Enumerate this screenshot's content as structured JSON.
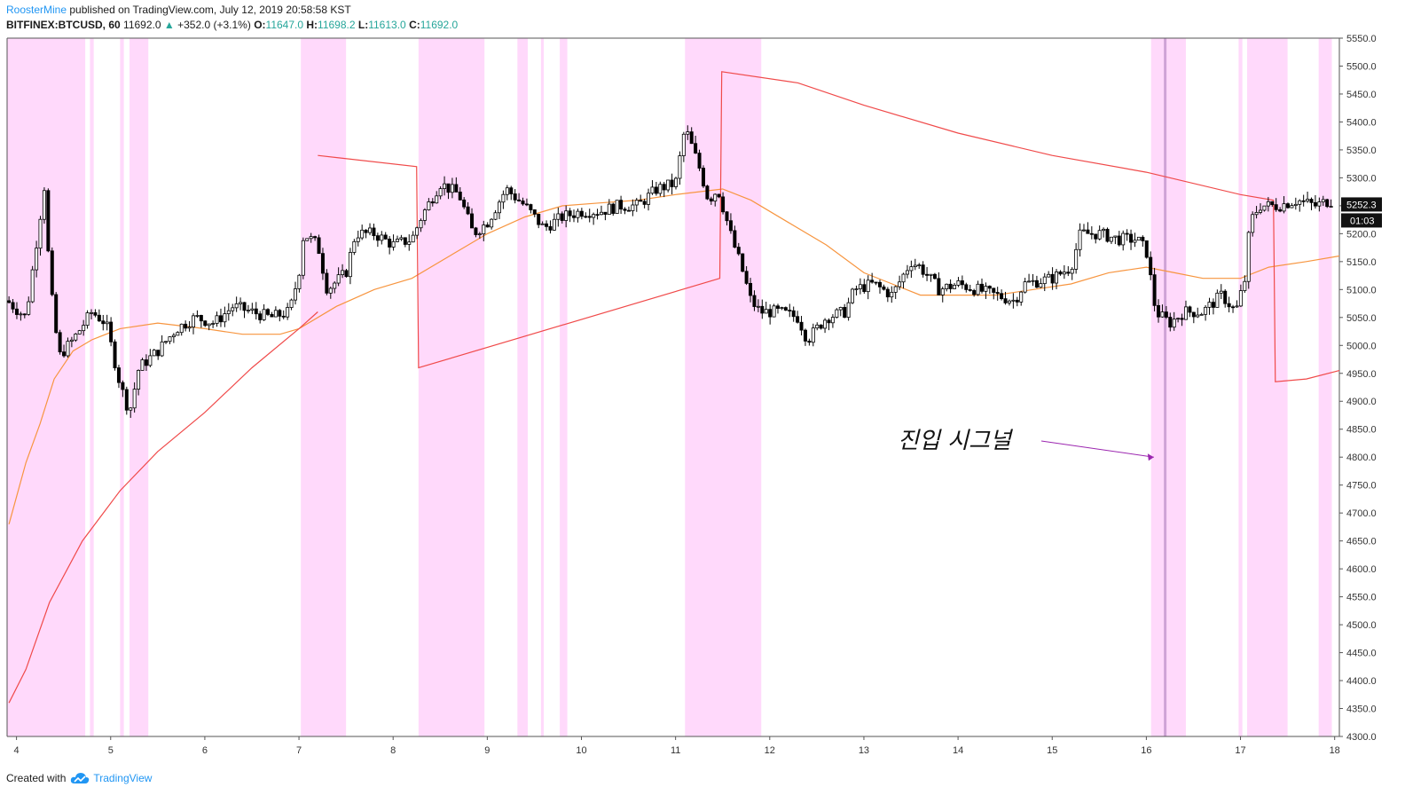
{
  "header": {
    "publisher": "RoosterMine",
    "published_text": "published on TradingView.com, July 12, 2019 20:58:58 KST",
    "symbol": "BITFINEX:BTCUSD, 60",
    "last": "11692.0",
    "change": "+352.0 (+3.1%)",
    "open_label": "O:",
    "open": "11647.0",
    "high_label": "H:",
    "high": "11698.2",
    "low_label": "L:",
    "low": "11613.0",
    "close_label": "C:",
    "close": "11692.0"
  },
  "footer": {
    "created_with": "Created with",
    "brand": "TradingView"
  },
  "colors": {
    "candle": "#000000",
    "highlight": "#ffd9fb",
    "signal_line": "#cfa3d6",
    "sma_fast": "#f7953f",
    "channel": "#f04a4a",
    "arrow": "#9c27b0"
  },
  "chart_data": {
    "type": "candlestick",
    "title": "",
    "ylim": [
      4300,
      5550
    ],
    "xlim_days": [
      3.9,
      18.05
    ],
    "y_ticks": [
      4300,
      4350,
      4400,
      4450,
      4500,
      4550,
      4600,
      4650,
      4700,
      4750,
      4800,
      4850,
      4900,
      4950,
      5000,
      5050,
      5100,
      5150,
      5200,
      5250,
      5300,
      5350,
      5400,
      5450,
      5500,
      5550
    ],
    "x_ticks": [
      4,
      5,
      6,
      7,
      8,
      9,
      10,
      11,
      12,
      13,
      14,
      15,
      16,
      17,
      18
    ],
    "price_label": "5252.3",
    "time_label": "01:03",
    "annotation": {
      "text": "진입 시그널",
      "arrow_to": [
        16.08,
        4800
      ]
    },
    "signal_day": 16.2,
    "highlight_bands_days": [
      [
        3.9,
        4.73
      ],
      [
        4.78,
        4.82
      ],
      [
        5.1,
        5.14
      ],
      [
        5.2,
        5.4
      ],
      [
        7.02,
        7.5
      ],
      [
        8.27,
        8.97
      ],
      [
        9.32,
        9.43
      ],
      [
        9.57,
        9.6
      ],
      [
        9.77,
        9.85
      ],
      [
        11.1,
        11.91
      ],
      [
        16.05,
        16.42
      ],
      [
        16.98,
        17.02
      ],
      [
        17.07,
        17.5
      ],
      [
        17.83,
        17.97
      ]
    ],
    "candle_anchors": [
      [
        3.9,
        5080
      ],
      [
        4.1,
        5050
      ],
      [
        4.3,
        5290
      ],
      [
        4.35,
        5120
      ],
      [
        4.45,
        4980
      ],
      [
        4.6,
        5010
      ],
      [
        4.8,
        5060
      ],
      [
        4.95,
        5040
      ],
      [
        5.1,
        4930
      ],
      [
        5.2,
        4880
      ],
      [
        5.3,
        4960
      ],
      [
        5.5,
        4990
      ],
      [
        5.7,
        5030
      ],
      [
        5.9,
        5050
      ],
      [
        6.1,
        5040
      ],
      [
        6.3,
        5070
      ],
      [
        6.5,
        5060
      ],
      [
        6.7,
        5050
      ],
      [
        6.9,
        5060
      ],
      [
        7.0,
        5130
      ],
      [
        7.05,
        5200
      ],
      [
        7.2,
        5180
      ],
      [
        7.3,
        5100
      ],
      [
        7.5,
        5130
      ],
      [
        7.6,
        5200
      ],
      [
        7.8,
        5200
      ],
      [
        8.0,
        5180
      ],
      [
        8.2,
        5190
      ],
      [
        8.3,
        5230
      ],
      [
        8.5,
        5290
      ],
      [
        8.7,
        5270
      ],
      [
        8.85,
        5200
      ],
      [
        9.0,
        5220
      ],
      [
        9.2,
        5280
      ],
      [
        9.4,
        5250
      ],
      [
        9.6,
        5210
      ],
      [
        9.8,
        5230
      ],
      [
        10.0,
        5240
      ],
      [
        10.2,
        5240
      ],
      [
        10.4,
        5250
      ],
      [
        10.6,
        5250
      ],
      [
        10.8,
        5280
      ],
      [
        11.0,
        5290
      ],
      [
        11.1,
        5390
      ],
      [
        11.25,
        5320
      ],
      [
        11.35,
        5260
      ],
      [
        11.45,
        5280
      ],
      [
        11.5,
        5250
      ],
      [
        11.6,
        5190
      ],
      [
        11.7,
        5140
      ],
      [
        11.8,
        5080
      ],
      [
        11.9,
        5060
      ],
      [
        12.1,
        5060
      ],
      [
        12.3,
        5050
      ],
      [
        12.4,
        5010
      ],
      [
        12.6,
        5050
      ],
      [
        12.8,
        5060
      ],
      [
        12.9,
        5100
      ],
      [
        13.1,
        5110
      ],
      [
        13.3,
        5090
      ],
      [
        13.5,
        5150
      ],
      [
        13.6,
        5140
      ],
      [
        13.8,
        5100
      ],
      [
        14.0,
        5110
      ],
      [
        14.2,
        5100
      ],
      [
        14.4,
        5090
      ],
      [
        14.6,
        5080
      ],
      [
        14.7,
        5110
      ],
      [
        15.0,
        5120
      ],
      [
        15.2,
        5140
      ],
      [
        15.3,
        5200
      ],
      [
        15.5,
        5200
      ],
      [
        15.7,
        5190
      ],
      [
        15.9,
        5190
      ],
      [
        16.0,
        5170
      ],
      [
        16.1,
        5060
      ],
      [
        16.25,
        5040
      ],
      [
        16.4,
        5060
      ],
      [
        16.6,
        5060
      ],
      [
        16.8,
        5090
      ],
      [
        16.95,
        5060
      ],
      [
        17.05,
        5120
      ],
      [
        17.1,
        5220
      ],
      [
        17.2,
        5250
      ],
      [
        17.4,
        5250
      ],
      [
        17.6,
        5260
      ],
      [
        17.8,
        5250
      ],
      [
        17.95,
        5260
      ],
      [
        18.05,
        5250
      ]
    ],
    "sma_fast_days": [
      [
        3.92,
        4680
      ],
      [
        4.1,
        4790
      ],
      [
        4.25,
        4860
      ],
      [
        4.4,
        4940
      ],
      [
        4.6,
        4990
      ],
      [
        4.8,
        5010
      ],
      [
        5.1,
        5030
      ],
      [
        5.5,
        5040
      ],
      [
        6.0,
        5030
      ],
      [
        6.4,
        5020
      ],
      [
        6.8,
        5020
      ],
      [
        7.0,
        5030
      ],
      [
        7.4,
        5070
      ],
      [
        7.8,
        5100
      ],
      [
        8.2,
        5120
      ],
      [
        8.6,
        5160
      ],
      [
        9.0,
        5200
      ],
      [
        9.4,
        5230
      ],
      [
        9.8,
        5250
      ],
      [
        10.2,
        5255
      ],
      [
        10.6,
        5260
      ],
      [
        11.0,
        5270
      ],
      [
        11.5,
        5280
      ],
      [
        11.8,
        5260
      ],
      [
        12.2,
        5220
      ],
      [
        12.6,
        5180
      ],
      [
        13.0,
        5130
      ],
      [
        13.3,
        5110
      ],
      [
        13.6,
        5090
      ],
      [
        14.0,
        5090
      ],
      [
        14.4,
        5090
      ],
      [
        14.8,
        5100
      ],
      [
        15.2,
        5110
      ],
      [
        15.6,
        5130
      ],
      [
        16.0,
        5140
      ],
      [
        16.3,
        5130
      ],
      [
        16.6,
        5120
      ],
      [
        17.0,
        5120
      ],
      [
        17.3,
        5140
      ],
      [
        17.7,
        5150
      ],
      [
        18.05,
        5160
      ]
    ],
    "channel_upper_days": [
      [
        7.2,
        5340
      ],
      [
        8.25,
        5320
      ],
      [
        8.27,
        4960
      ],
      [
        11.47,
        5120
      ],
      [
        11.49,
        5490
      ],
      [
        12.3,
        5470
      ],
      [
        13.0,
        5430
      ],
      [
        14.0,
        5380
      ],
      [
        15.0,
        5340
      ],
      [
        16.0,
        5310
      ],
      [
        17.0,
        5270
      ],
      [
        17.35,
        5260
      ],
      [
        17.37,
        4935
      ],
      [
        17.7,
        4940
      ],
      [
        18.05,
        4955
      ]
    ],
    "channel_lower_days": [
      [
        3.92,
        4360
      ],
      [
        4.1,
        4420
      ],
      [
        4.35,
        4540
      ],
      [
        4.7,
        4650
      ],
      [
        5.1,
        4740
      ],
      [
        5.5,
        4810
      ],
      [
        6.0,
        4880
      ],
      [
        6.5,
        4960
      ],
      [
        7.0,
        5030
      ],
      [
        7.2,
        5060
      ]
    ]
  }
}
